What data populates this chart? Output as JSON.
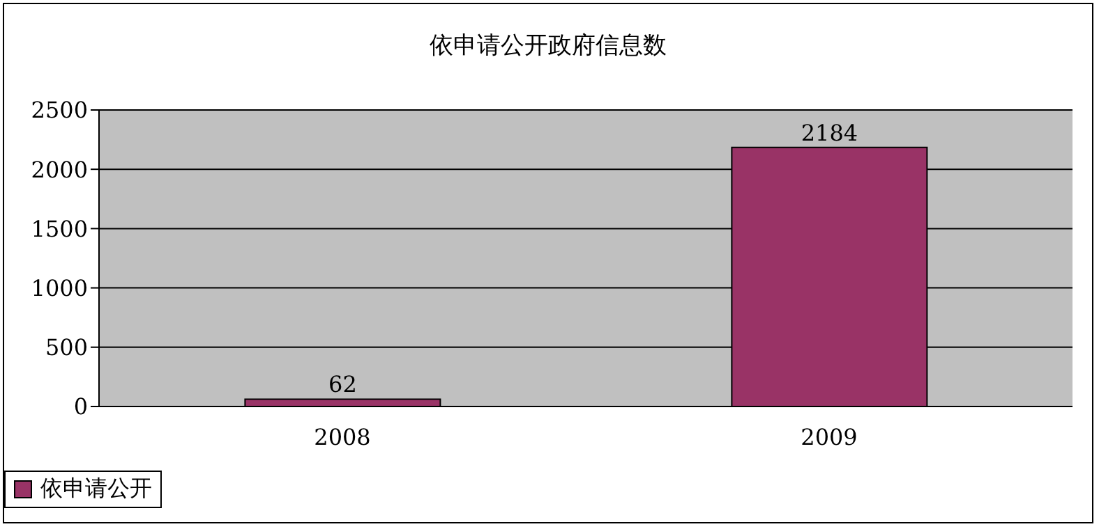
{
  "chart_data": {
    "type": "bar",
    "title": "依申请公开政府信息数",
    "categories": [
      "2008",
      "2009"
    ],
    "series": [
      {
        "name": "依申请公开",
        "color": "#993366",
        "values": [
          62,
          2184
        ]
      }
    ],
    "ylim": [
      0,
      2500
    ],
    "yticks": [
      0,
      500,
      1000,
      1500,
      2000,
      2500
    ],
    "grid": "y",
    "legend": "bottom",
    "data_labels": true
  }
}
